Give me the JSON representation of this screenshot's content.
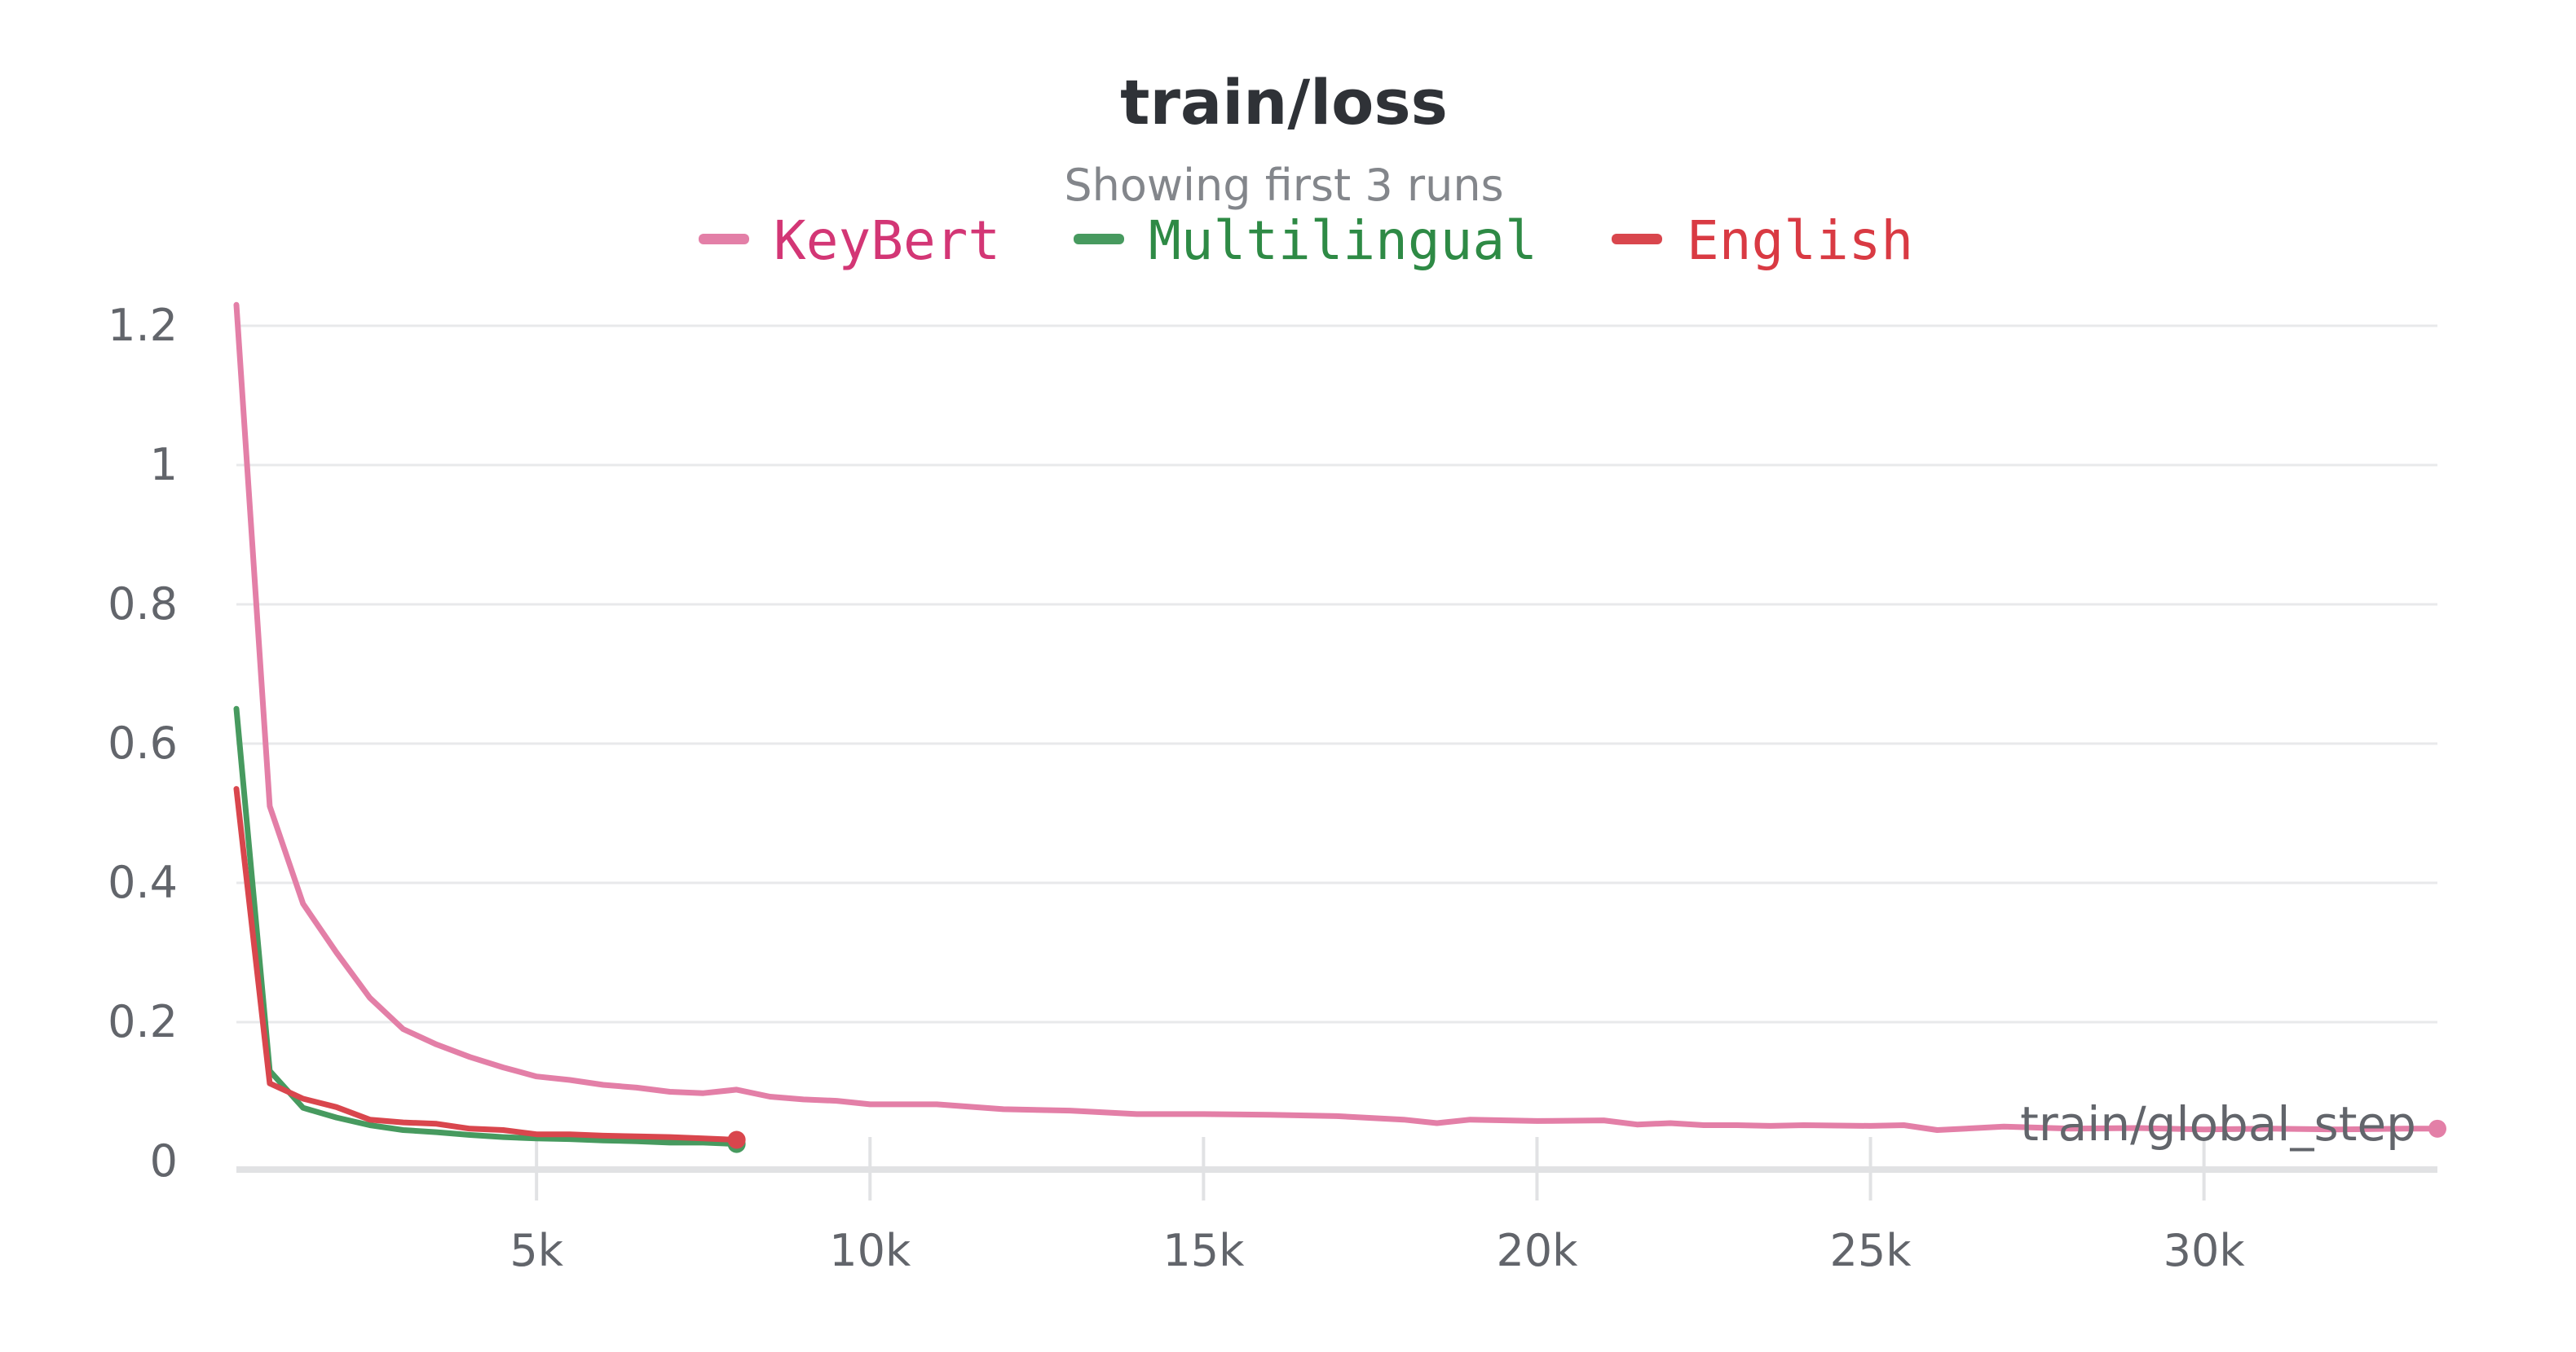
{
  "chart_data": {
    "type": "line",
    "title": "train/loss",
    "subtitle": "Showing first 3 runs",
    "xlabel": "train/global_step",
    "ylabel": "",
    "xlim": [
      500,
      33500
    ],
    "ylim": [
      0,
      1.2
    ],
    "x_ticks": [
      5000,
      10000,
      15000,
      20000,
      25000,
      30000
    ],
    "x_tick_labels": [
      "5k",
      "10k",
      "15k",
      "20k",
      "25k",
      "30k"
    ],
    "y_ticks": [
      0,
      0.2,
      0.4,
      0.6,
      0.8,
      1.0,
      1.2
    ],
    "y_tick_labels": [
      "0",
      "0.2",
      "0.4",
      "0.6",
      "0.8",
      "1",
      "1.2"
    ],
    "grid": true,
    "legend_position": "top-center",
    "series": [
      {
        "name": "KeyBert",
        "color": "#e37fa7",
        "text_color": "#d33675",
        "x": [
          500,
          1000,
          1500,
          2000,
          2500,
          3000,
          3500,
          4000,
          4500,
          5000,
          5500,
          6000,
          6500,
          7000,
          7500,
          8000,
          8500,
          9000,
          9500,
          10000,
          11000,
          12000,
          13000,
          14000,
          15000,
          16000,
          17000,
          18000,
          18500,
          19000,
          20000,
          21000,
          21500,
          22000,
          22500,
          23000,
          23500,
          24000,
          25000,
          25500,
          26000,
          27000,
          28000,
          29000,
          30000,
          31000,
          32000,
          33000,
          33500
        ],
        "y": [
          1.23,
          0.51,
          0.37,
          0.3,
          0.235,
          0.19,
          0.168,
          0.15,
          0.135,
          0.122,
          0.117,
          0.11,
          0.106,
          0.1,
          0.098,
          0.103,
          0.093,
          0.089,
          0.087,
          0.082,
          0.082,
          0.075,
          0.073,
          0.068,
          0.068,
          0.067,
          0.065,
          0.06,
          0.055,
          0.06,
          0.058,
          0.059,
          0.053,
          0.055,
          0.052,
          0.052,
          0.051,
          0.052,
          0.051,
          0.052,
          0.045,
          0.05,
          0.047,
          0.048,
          0.046,
          0.047,
          0.046,
          0.047,
          0.047
        ]
      },
      {
        "name": "Multilingual",
        "color": "#479a5f",
        "text_color": "#2e8a45",
        "x": [
          500,
          1000,
          1500,
          2000,
          2500,
          3000,
          3500,
          4000,
          4500,
          5000,
          5500,
          6000,
          6500,
          7000,
          7500,
          8000
        ],
        "y": [
          0.65,
          0.13,
          0.077,
          0.063,
          0.052,
          0.045,
          0.042,
          0.038,
          0.035,
          0.033,
          0.032,
          0.03,
          0.029,
          0.027,
          0.027,
          0.025
        ]
      },
      {
        "name": "English",
        "color": "#d9464d",
        "text_color": "#d93a43",
        "x": [
          500,
          1000,
          1500,
          2000,
          2500,
          3000,
          3500,
          4000,
          4500,
          5000,
          5500,
          6000,
          6500,
          7000,
          7500,
          8000
        ],
        "y": [
          0.535,
          0.112,
          0.09,
          0.078,
          0.06,
          0.056,
          0.054,
          0.047,
          0.045,
          0.039,
          0.039,
          0.037,
          0.036,
          0.035,
          0.033,
          0.031
        ]
      }
    ]
  }
}
